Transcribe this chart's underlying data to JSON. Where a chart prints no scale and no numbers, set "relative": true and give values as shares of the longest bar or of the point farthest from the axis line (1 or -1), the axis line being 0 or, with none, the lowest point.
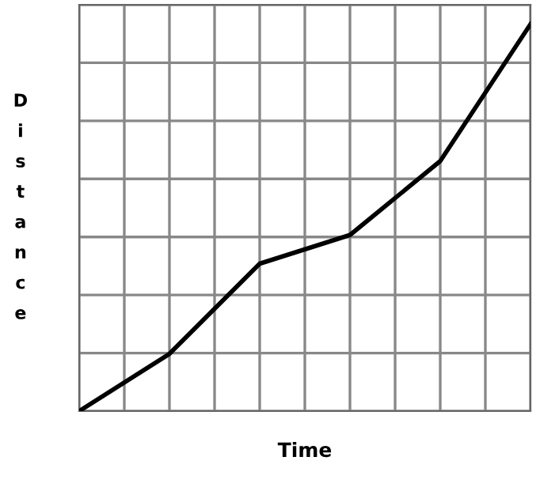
{
  "chart_data": {
    "type": "line",
    "xlabel": "Time",
    "ylabel": "Distance",
    "relative": true,
    "categories": [
      null,
      null,
      null,
      null,
      null,
      null
    ],
    "series": [
      {
        "color": "#000000",
        "values": [
          0,
          0.148,
          0.381,
          0.455,
          0.646,
          1
        ]
      }
    ],
    "grid": true,
    "tick_labels": false,
    "marker": "none",
    "line_style": "solid"
  }
}
